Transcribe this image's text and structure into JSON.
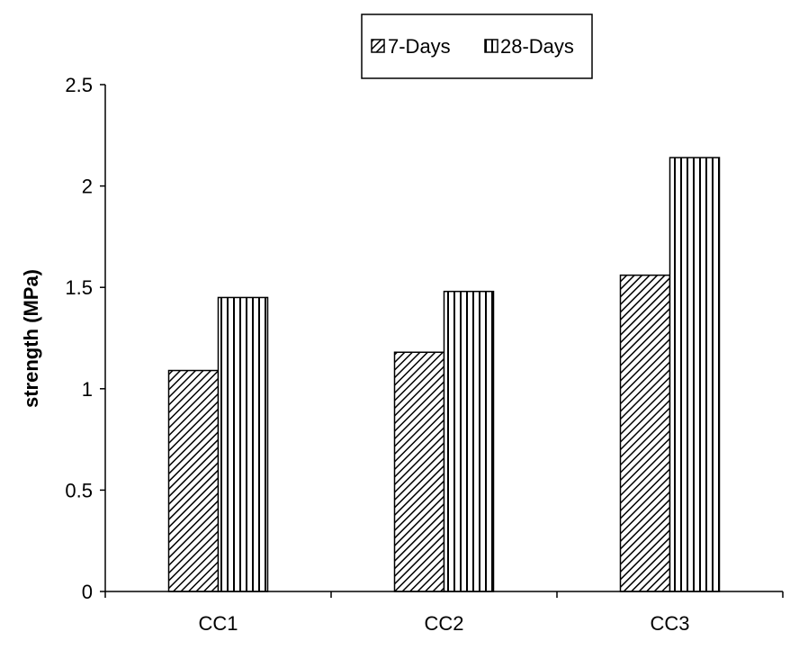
{
  "chart_data": {
    "type": "bar",
    "categories": [
      "CC1",
      "CC2",
      "CC3"
    ],
    "series": [
      {
        "name": "7-Days",
        "values": [
          1.09,
          1.18,
          1.56
        ],
        "pattern": "diagonal-hatch"
      },
      {
        "name": "28-Days",
        "values": [
          1.45,
          1.48,
          2.14
        ],
        "pattern": "vertical-hatch"
      }
    ],
    "ylabel": "strength (MPa)",
    "xlabel": "",
    "ylim": [
      0,
      2.5
    ],
    "yticks": [
      "0",
      "0.5",
      "1",
      "1.5",
      "2",
      "2.5"
    ],
    "grid": false,
    "legend_position": "top",
    "colors": {
      "stroke": "#000000",
      "background": "#ffffff"
    }
  }
}
